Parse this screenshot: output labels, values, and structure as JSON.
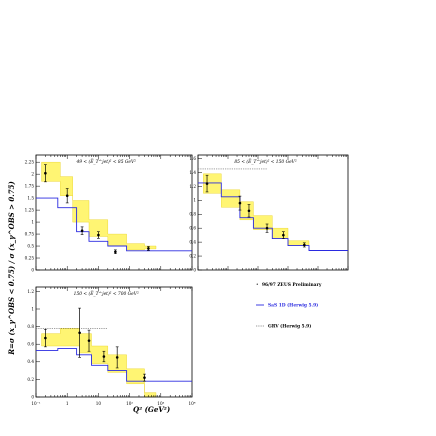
{
  "figure": {
    "ylabel": "R=σ (x_γ^OBS < 0.75) / σ (x_γ^OBS > 0.75)",
    "xlabel": "Q² (GeV²)",
    "legend": [
      {
        "label": "96/97 ZEUS Preliminary",
        "kind": "marker"
      },
      {
        "label": "SaS 1D (Herwig 5.9)",
        "kind": "line",
        "color": "#2a2ae0"
      },
      {
        "label": "GRV (Herwig 5.9)",
        "kind": "dotted",
        "color": "#555555"
      }
    ]
  },
  "chart_data": [
    {
      "type": "scatter",
      "label": "49 < (E̅_T^jet)² < 85 GeV²",
      "log_x": true,
      "xlim": [
        0.1,
        10000
      ],
      "ylim": [
        0,
        2.4
      ],
      "yticks": [
        "0",
        "0.25",
        "0.5",
        "0.75",
        "1",
        "1.25",
        "1.5",
        "1.75",
        "2",
        "2.25"
      ],
      "series": [
        {
          "name": "96/97 ZEUS Preliminary",
          "x": [
            0.2,
            1,
            3,
            10,
            35,
            400
          ],
          "y": [
            2.02,
            1.55,
            0.82,
            0.73,
            0.38,
            0.45
          ],
          "yerr": [
            0.18,
            0.15,
            0.08,
            0.07,
            0.04,
            0.04
          ]
        },
        {
          "name": "SaS 1D (Herwig 5.9)",
          "bins": [
            0.1,
            0.5,
            2,
            5,
            20,
            80,
            300,
            10000
          ],
          "values": [
            1.5,
            1.3,
            0.8,
            0.6,
            0.5,
            0.4,
            0.4
          ]
        },
        {
          "name": "band",
          "bins": [
            0.15,
            0.6,
            1.5,
            5,
            20,
            80,
            300,
            700
          ],
          "low": [
            1.85,
            1.55,
            1.0,
            0.7,
            0.5,
            0.42,
            0.44
          ],
          "high": [
            2.25,
            1.95,
            1.45,
            1.05,
            0.75,
            0.55,
            0.5
          ]
        }
      ]
    },
    {
      "type": "scatter",
      "label": "85 < (E̅_T^jet)² < 150 GeV²",
      "log_x": true,
      "xlim": [
        0.1,
        10000
      ],
      "ylim": [
        0,
        1.65
      ],
      "yticks": [
        "0",
        "0.2",
        "0.4",
        "0.6",
        "0.8",
        "1",
        "1.2",
        "1.4",
        "1.6"
      ],
      "series": [
        {
          "name": "96/97 ZEUS Preliminary",
          "x": [
            0.2,
            2.5,
            5,
            20,
            70,
            350
          ],
          "y": [
            1.24,
            0.96,
            0.85,
            0.6,
            0.5,
            0.36
          ],
          "yerr": [
            0.12,
            0.1,
            0.09,
            0.06,
            0.05,
            0.03
          ]
        },
        {
          "name": "SaS 1D (Herwig 5.9)",
          "bins": [
            0.1,
            0.6,
            2.5,
            7,
            30,
            100,
            500,
            10000
          ],
          "values": [
            1.25,
            1.05,
            0.75,
            0.6,
            0.45,
            0.35,
            0.28
          ]
        },
        {
          "name": "GRV (Herwig 5.9)",
          "bins": [
            0.1,
            20
          ],
          "values": [
            1.45
          ]
        },
        {
          "name": "band",
          "bins": [
            0.15,
            0.6,
            2.5,
            7,
            30,
            100,
            500
          ],
          "low": [
            1.1,
            0.9,
            0.72,
            0.58,
            0.45,
            0.35
          ],
          "high": [
            1.38,
            1.15,
            0.98,
            0.78,
            0.6,
            0.42
          ]
        }
      ]
    },
    {
      "type": "scatter",
      "label": "150 < (E̅_T^jet)² < 700 GeV²",
      "log_x": true,
      "xlim": [
        0.1,
        10000
      ],
      "xticks": [
        "10⁻¹",
        "1",
        "10",
        "10²",
        "10³",
        "10⁴"
      ],
      "ylim": [
        0,
        1.25
      ],
      "yticks": [
        "0",
        "0.2",
        "0.4",
        "0.6",
        "0.8",
        "1",
        "1.2"
      ],
      "series": [
        {
          "name": "96/97 ZEUS Preliminary",
          "x": [
            0.2,
            2.5,
            5,
            15,
            40,
            300
          ],
          "y": [
            0.67,
            0.73,
            0.64,
            0.46,
            0.45,
            0.22
          ],
          "yerr": [
            0.1,
            0.28,
            0.12,
            0.06,
            0.12,
            0.04
          ]
        },
        {
          "name": "SaS 1D (Herwig 5.9)",
          "bins": [
            0.1,
            0.5,
            2,
            6,
            20,
            80,
            300,
            10000
          ],
          "values": [
            0.53,
            0.55,
            0.48,
            0.36,
            0.3,
            0.18,
            0.18
          ]
        },
        {
          "name": "GRV (Herwig 5.9)",
          "bins": [
            0.1,
            20
          ],
          "values": [
            0.78
          ]
        },
        {
          "name": "band",
          "bins": [
            0.15,
            0.6,
            2.5,
            6,
            20,
            80,
            300,
            700
          ],
          "low": [
            0.58,
            0.58,
            0.5,
            0.38,
            0.28,
            0.15,
            0.0
          ],
          "high": [
            0.72,
            0.78,
            0.72,
            0.58,
            0.48,
            0.32,
            0.05
          ]
        }
      ]
    }
  ]
}
